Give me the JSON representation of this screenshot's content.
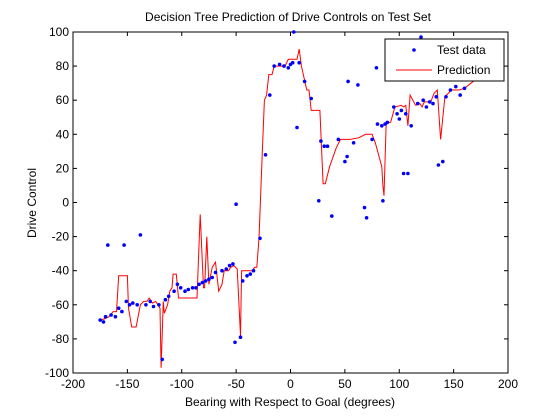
{
  "chart_data": {
    "type": "scatter",
    "title": "Decision Tree Prediction of Drive Controls on Test Set",
    "xlabel": "Bearing with Respect to Goal (degrees)",
    "ylabel": "Drive Control",
    "xlim": [
      -200,
      200
    ],
    "ylim": [
      -100,
      100
    ],
    "xticks": [
      -200,
      -150,
      -100,
      -50,
      0,
      50,
      100,
      150,
      200
    ],
    "yticks": [
      -100,
      -80,
      -60,
      -40,
      -20,
      0,
      20,
      40,
      60,
      80,
      100
    ],
    "grid": false,
    "legend_position": "top-right",
    "series": [
      {
        "name": "Test data",
        "type": "scatter",
        "color": "#0000ff",
        "points": [
          [
            -175,
            -69
          ],
          [
            -172,
            -70
          ],
          [
            -170,
            -67
          ],
          [
            -168,
            -25
          ],
          [
            -165,
            -66
          ],
          [
            -161,
            -67
          ],
          [
            -158,
            -62
          ],
          [
            -155,
            -64
          ],
          [
            -153,
            -25
          ],
          [
            -151,
            -58
          ],
          [
            -148,
            -60
          ],
          [
            -145,
            -59
          ],
          [
            -141,
            -60
          ],
          [
            -138,
            -19
          ],
          [
            -133,
            -60
          ],
          [
            -129,
            -58
          ],
          [
            -126,
            -61
          ],
          [
            -121,
            -60
          ],
          [
            -118,
            -92
          ],
          [
            -115,
            -57
          ],
          [
            -112,
            -55
          ],
          [
            -107,
            -52
          ],
          [
            -104,
            -48
          ],
          [
            -101,
            -50
          ],
          [
            -97,
            -52
          ],
          [
            -94,
            -51
          ],
          [
            -90,
            -50
          ],
          [
            -87,
            -50
          ],
          [
            -84,
            -48
          ],
          [
            -81,
            -47
          ],
          [
            -78,
            -46
          ],
          [
            -75,
            -45
          ],
          [
            -72,
            -44
          ],
          [
            -69,
            -41
          ],
          [
            -63,
            -40
          ],
          [
            -59,
            -39
          ],
          [
            -56,
            -37
          ],
          [
            -53,
            -36
          ],
          [
            -51,
            -82
          ],
          [
            -50,
            -1
          ],
          [
            -46,
            -79
          ],
          [
            -44,
            -46
          ],
          [
            -40,
            -43
          ],
          [
            -37,
            -42
          ],
          [
            -34,
            -40
          ],
          [
            -28,
            -21
          ],
          [
            -23,
            28
          ],
          [
            -19,
            63
          ],
          [
            -15,
            80
          ],
          [
            -10,
            81
          ],
          [
            -6,
            80
          ],
          [
            -2,
            79
          ],
          [
            0,
            81
          ],
          [
            2,
            82
          ],
          [
            3,
            100
          ],
          [
            6,
            44
          ],
          [
            8,
            82
          ],
          [
            13,
            71
          ],
          [
            19,
            61
          ],
          [
            26,
            1
          ],
          [
            28,
            36
          ],
          [
            31,
            33
          ],
          [
            34,
            33
          ],
          [
            38,
            -8
          ],
          [
            44,
            37
          ],
          [
            50,
            24
          ],
          [
            52,
            27
          ],
          [
            53,
            71
          ],
          [
            58,
            35
          ],
          [
            62,
            69
          ],
          [
            68,
            -3
          ],
          [
            70,
            -9
          ],
          [
            75,
            37
          ],
          [
            79,
            79
          ],
          [
            80,
            46
          ],
          [
            84,
            45
          ],
          [
            85,
            1
          ],
          [
            87,
            46
          ],
          [
            89,
            47
          ],
          [
            95,
            56
          ],
          [
            98,
            52
          ],
          [
            100,
            49
          ],
          [
            102,
            54
          ],
          [
            104,
            17
          ],
          [
            106,
            52
          ],
          [
            108,
            17
          ],
          [
            111,
            45
          ],
          [
            117,
            58
          ],
          [
            120,
            97
          ],
          [
            122,
            60
          ],
          [
            125,
            56
          ],
          [
            128,
            59
          ],
          [
            131,
            58
          ],
          [
            134,
            62
          ],
          [
            136,
            22
          ],
          [
            140,
            24
          ],
          [
            143,
            62
          ],
          [
            147,
            66
          ],
          [
            152,
            68
          ],
          [
            156,
            63
          ],
          [
            160,
            67
          ]
        ]
      },
      {
        "name": "Prediction",
        "type": "line",
        "color": "#ff0000",
        "points": [
          [
            -175,
            -69
          ],
          [
            -170,
            -68
          ],
          [
            -167,
            -67
          ],
          [
            -163,
            -64
          ],
          [
            -160,
            -64
          ],
          [
            -158,
            -43
          ],
          [
            -150,
            -43
          ],
          [
            -149,
            -62
          ],
          [
            -146,
            -73
          ],
          [
            -142,
            -73
          ],
          [
            -138,
            -60
          ],
          [
            -135,
            -58
          ],
          [
            -132,
            -58
          ],
          [
            -130,
            -56
          ],
          [
            -127,
            -59
          ],
          [
            -124,
            -58
          ],
          [
            -120,
            -62
          ],
          [
            -119,
            -97
          ],
          [
            -117,
            -58
          ],
          [
            -116,
            -65
          ],
          [
            -113,
            -60
          ],
          [
            -111,
            -52
          ],
          [
            -109,
            -50
          ],
          [
            -108,
            -42
          ],
          [
            -105,
            -42
          ],
          [
            -103,
            -56
          ],
          [
            -100,
            -56
          ],
          [
            -88,
            -56
          ],
          [
            -86,
            -56
          ],
          [
            -83,
            -7
          ],
          [
            -80,
            -50
          ],
          [
            -79,
            -50
          ],
          [
            -77,
            -20
          ],
          [
            -75,
            -48
          ],
          [
            -72,
            -38
          ],
          [
            -69,
            -35
          ],
          [
            -66,
            -52
          ],
          [
            -63,
            -48
          ],
          [
            -61,
            -40
          ],
          [
            -57,
            -40
          ],
          [
            -55,
            -38
          ],
          [
            -52,
            -37
          ],
          [
            -49,
            -39
          ],
          [
            -46,
            -78
          ],
          [
            -45,
            -40
          ],
          [
            -43,
            -40
          ],
          [
            -35,
            -40
          ],
          [
            -33,
            -38
          ],
          [
            -31,
            -38
          ],
          [
            -29,
            -21
          ],
          [
            -26,
            28
          ],
          [
            -24,
            60
          ],
          [
            -22,
            63
          ],
          [
            -20,
            75
          ],
          [
            -17,
            75
          ],
          [
            -15,
            80
          ],
          [
            -8,
            80
          ],
          [
            -5,
            80
          ],
          [
            -2,
            84
          ],
          [
            0,
            84
          ],
          [
            6,
            84
          ],
          [
            8,
            90
          ],
          [
            10,
            80
          ],
          [
            15,
            66
          ],
          [
            17,
            66
          ],
          [
            19,
            54
          ],
          [
            27,
            54
          ],
          [
            30,
            11
          ],
          [
            32,
            11
          ],
          [
            36,
            21
          ],
          [
            42,
            32
          ],
          [
            46,
            37
          ],
          [
            55,
            37
          ],
          [
            63,
            38
          ],
          [
            69,
            40
          ],
          [
            75,
            40
          ],
          [
            78,
            35
          ],
          [
            84,
            21
          ],
          [
            85,
            10
          ],
          [
            86,
            4
          ],
          [
            88,
            47
          ],
          [
            92,
            47
          ],
          [
            96,
            56
          ],
          [
            102,
            57
          ],
          [
            104,
            56
          ],
          [
            106,
            57
          ],
          [
            108,
            45
          ],
          [
            110,
            63
          ],
          [
            115,
            57
          ],
          [
            119,
            58
          ],
          [
            121,
            56
          ],
          [
            123,
            59
          ],
          [
            129,
            59
          ],
          [
            132,
            64
          ],
          [
            135,
            66
          ],
          [
            138,
            37
          ],
          [
            142,
            62
          ],
          [
            148,
            66
          ],
          [
            155,
            66
          ],
          [
            160,
            67
          ],
          [
            170,
            72
          ]
        ]
      }
    ]
  }
}
